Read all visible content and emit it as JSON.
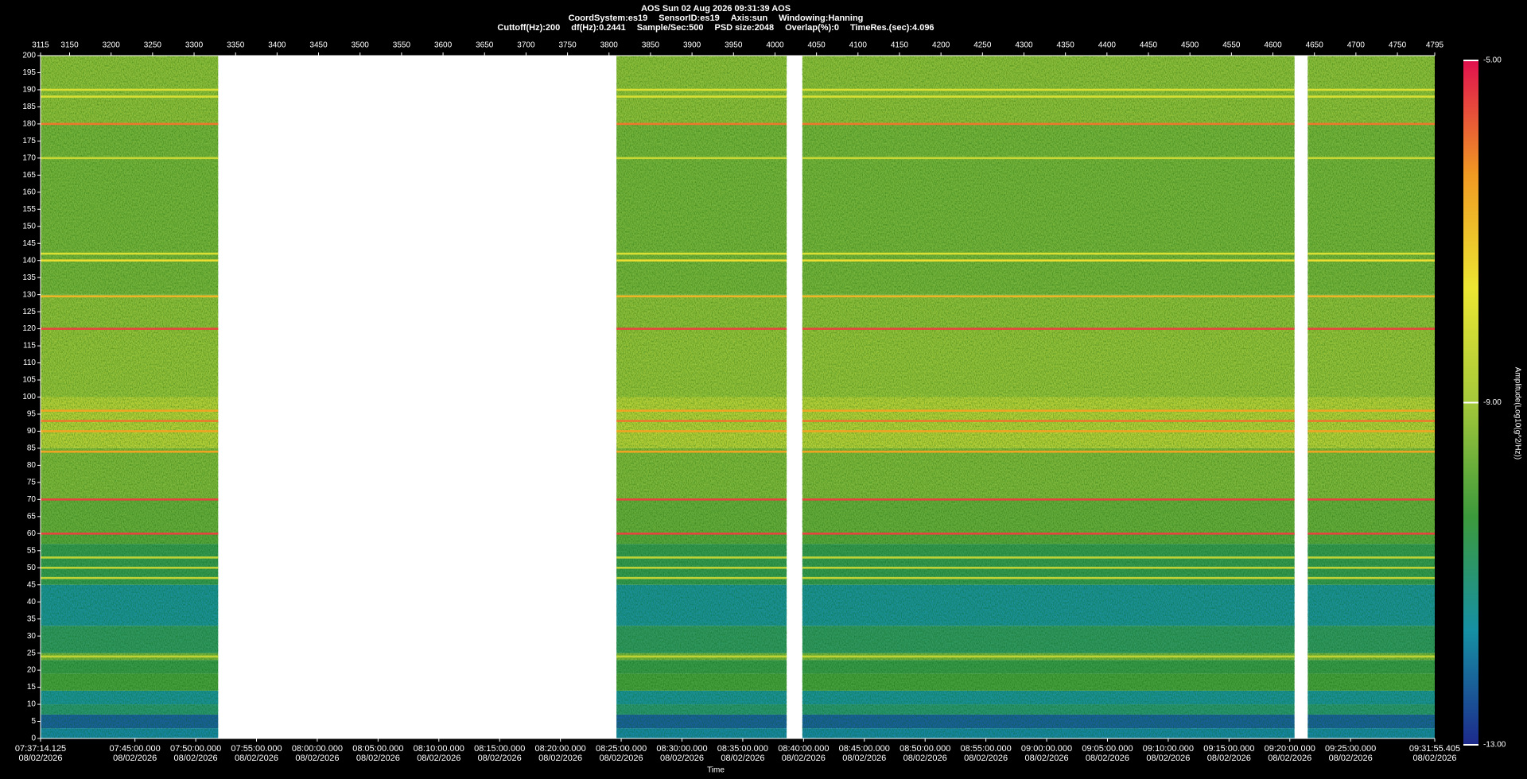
{
  "chart_data": {
    "type": "spectrogram",
    "title": "AOS  Sun 02 Aug 2026 09:31:39  AOS",
    "info": [
      [
        "CoordSystem:es19",
        "SensorID:es19",
        "Axis:sun",
        "Windowing:Hanning"
      ],
      [
        "Cuttoff(Hz):200",
        "df(Hz):0.2441",
        "Sample/Sec:500",
        "PSD size:2048",
        "Overlap(%):0",
        "TimeRes.(sec):4.096"
      ]
    ],
    "xlabel": "Time",
    "colorbar_label": "Amplitude(Log10(g^2/Hz))",
    "xlim": [
      3115,
      4795
    ],
    "xticks": [
      3115,
      3150,
      3200,
      3250,
      3300,
      3350,
      3400,
      3450,
      3500,
      3550,
      3600,
      3650,
      3700,
      3750,
      3800,
      3850,
      3900,
      3950,
      4000,
      4050,
      4100,
      4150,
      4200,
      4250,
      4300,
      4350,
      4400,
      4450,
      4500,
      4550,
      4600,
      4650,
      4700,
      4750,
      4795
    ],
    "x2ticks": [
      {
        "value": 3115,
        "label": "07:37:14.125\n08/02/2026"
      },
      {
        "value": 3228.74,
        "label": "07:45:00.000\n08/02/2026"
      },
      {
        "value": 3301.98,
        "label": "07:50:00.000\n08/02/2026"
      },
      {
        "value": 3375.22,
        "label": "07:55:00.000\n08/02/2026"
      },
      {
        "value": 3448.46,
        "label": "08:00:00.000\n08/02/2026"
      },
      {
        "value": 3521.71,
        "label": "08:05:00.000\n08/02/2026"
      },
      {
        "value": 3594.95,
        "label": "08:10:00.000\n08/02/2026"
      },
      {
        "value": 3668.19,
        "label": "08:15:00.000\n08/02/2026"
      },
      {
        "value": 3741.43,
        "label": "08:20:00.000\n08/02/2026"
      },
      {
        "value": 3814.68,
        "label": "08:25:00.000\n08/02/2026"
      },
      {
        "value": 3887.92,
        "label": "08:30:00.000\n08/02/2026"
      },
      {
        "value": 3961.16,
        "label": "08:35:00.000\n08/02/2026"
      },
      {
        "value": 4034.4,
        "label": "08:40:00.000\n08/02/2026"
      },
      {
        "value": 4107.65,
        "label": "08:45:00.000\n08/02/2026"
      },
      {
        "value": 4180.89,
        "label": "08:50:00.000\n08/02/2026"
      },
      {
        "value": 4254.13,
        "label": "08:55:00.000\n08/02/2026"
      },
      {
        "value": 4327.37,
        "label": "09:00:00.000\n08/02/2026"
      },
      {
        "value": 4400.62,
        "label": "09:05:00.000\n08/02/2026"
      },
      {
        "value": 4473.86,
        "label": "09:10:00.000\n08/02/2026"
      },
      {
        "value": 4547.1,
        "label": "09:15:00.000\n08/02/2026"
      },
      {
        "value": 4620.34,
        "label": "09:20:00.000\n08/02/2026"
      },
      {
        "value": 4693.59,
        "label": "09:25:00.000\n08/02/2026"
      },
      {
        "value": 4795,
        "label": "09:31:55.405\n08/02/2026"
      }
    ],
    "ylim": [
      0,
      200
    ],
    "yticks": [
      0,
      5,
      10,
      15,
      20,
      25,
      30,
      35,
      40,
      45,
      50,
      55,
      60,
      65,
      70,
      75,
      80,
      85,
      90,
      95,
      100,
      105,
      110,
      115,
      120,
      125,
      130,
      135,
      140,
      145,
      150,
      155,
      160,
      165,
      170,
      175,
      180,
      185,
      190,
      195,
      200
    ],
    "clim": [
      -13,
      -5
    ],
    "cticks": [
      {
        "value": -5,
        "label": "-5.00"
      },
      {
        "value": -9,
        "label": "-9.00"
      },
      {
        "value": -13,
        "label": "-13.00"
      }
    ],
    "colormap": [
      "#1d2a8c",
      "#1690a4",
      "#3c9a3c",
      "#a4c83a",
      "#ece632",
      "#f09a22",
      "#e0104e"
    ],
    "segments": [
      [
        3115,
        3329
      ],
      [
        3809,
        4014
      ],
      [
        4033,
        4626
      ],
      [
        4642,
        4795
      ]
    ],
    "freq_edges": [
      0,
      3,
      7,
      10,
      14,
      19,
      23,
      25,
      33,
      45,
      57,
      60,
      70,
      85,
      100,
      120,
      130,
      180,
      200
    ],
    "amplitudes": [
      -11.8,
      -12.3,
      -11,
      -11.5,
      -10.2,
      -10.5,
      -9.6,
      -10.8,
      -11.5,
      -10.6,
      -10,
      -9.8,
      -9.5,
      -8.7,
      -9.2,
      -9.3,
      -9.6,
      -9.3
    ],
    "lines": {
      "freqs": [
        24,
        47,
        50,
        53,
        60,
        70,
        84,
        90,
        93,
        96,
        120,
        129.5,
        140,
        142,
        170,
        180,
        188,
        190
      ],
      "amplitudes": [
        -8.5,
        -8.5,
        -8.5,
        -8.5,
        -5.5,
        -5.5,
        -6.5,
        -6.5,
        -6,
        -6.5,
        -5.5,
        -6.8,
        -7.5,
        -8,
        -8.3,
        -6,
        -8,
        -8
      ]
    }
  }
}
